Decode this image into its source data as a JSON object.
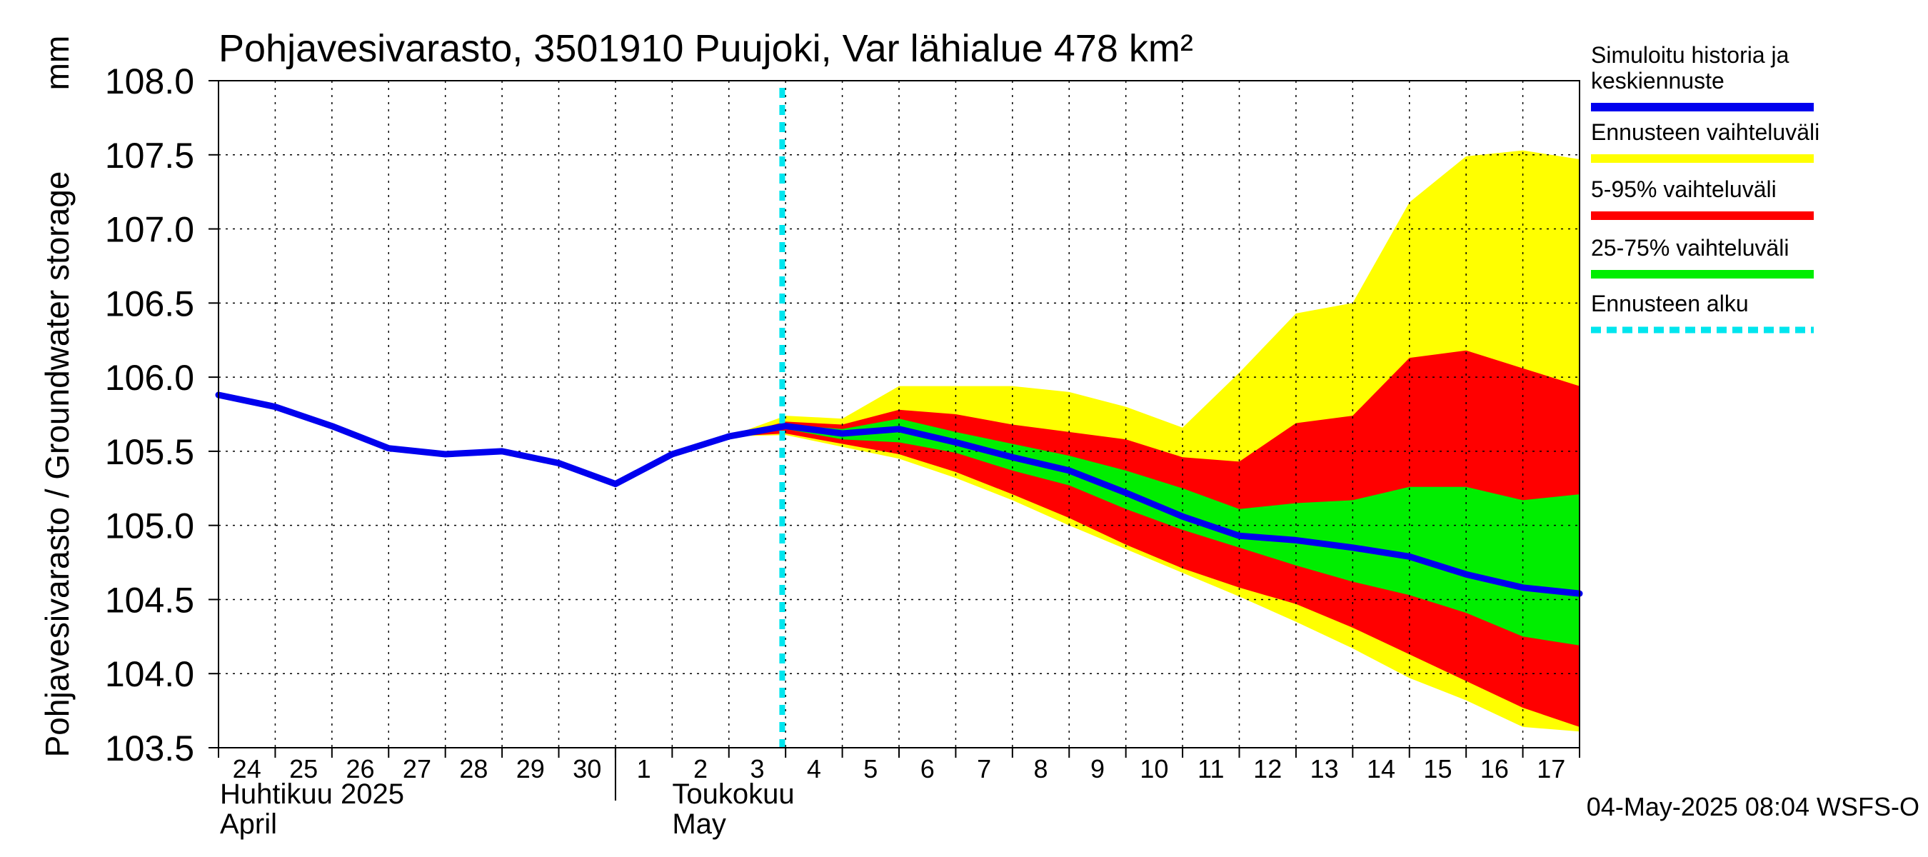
{
  "chart_data": {
    "type": "area",
    "title": "Pohjavesivarasto, 3501910 Puujoki, Var lähialue 478 km²",
    "ylabel": "Pohjavesivarasto / Groundwater storage",
    "yunit": "mm",
    "ylim": [
      103.5,
      108.0
    ],
    "yticks": [
      "103.5",
      "104.0",
      "104.5",
      "105.0",
      "105.5",
      "106.0",
      "106.5",
      "107.0",
      "107.5",
      "108.0"
    ],
    "x_dates": [
      "2025-04-24",
      "2025-04-25",
      "2025-04-26",
      "2025-04-27",
      "2025-04-28",
      "2025-04-29",
      "2025-04-30",
      "2025-05-01",
      "2025-05-02",
      "2025-05-03",
      "2025-05-04",
      "2025-05-05",
      "2025-05-06",
      "2025-05-07",
      "2025-05-08",
      "2025-05-09",
      "2025-05-10",
      "2025-05-11",
      "2025-05-12",
      "2025-05-13",
      "2025-05-14",
      "2025-05-15",
      "2025-05-16",
      "2025-05-17",
      "2025-05-18"
    ],
    "xtick_labels": [
      "24",
      "25",
      "26",
      "27",
      "28",
      "29",
      "30",
      "1",
      "2",
      "3",
      "4",
      "5",
      "6",
      "7",
      "8",
      "9",
      "10",
      "11",
      "12",
      "13",
      "14",
      "15",
      "16",
      "17"
    ],
    "month_labels": [
      {
        "fi": "Huhtikuu  2025",
        "en": "April"
      },
      {
        "fi": "Toukokuu",
        "en": "May"
      }
    ],
    "forecast_start": "2025-05-04",
    "series": [
      {
        "name": "Simuloitu historia ja keskiennuste",
        "color": "#0000ee",
        "x": [
          "2025-04-24",
          "2025-04-25",
          "2025-04-26",
          "2025-04-27",
          "2025-04-28",
          "2025-04-29",
          "2025-04-30",
          "2025-05-01",
          "2025-05-02",
          "2025-05-03",
          "2025-05-04",
          "2025-05-05",
          "2025-05-06",
          "2025-05-07",
          "2025-05-08",
          "2025-05-09",
          "2025-05-10",
          "2025-05-11",
          "2025-05-12",
          "2025-05-13",
          "2025-05-14",
          "2025-05-15",
          "2025-05-16",
          "2025-05-17",
          "2025-05-18"
        ],
        "y": [
          105.88,
          105.8,
          105.67,
          105.52,
          105.48,
          105.5,
          105.42,
          105.28,
          105.48,
          105.6,
          105.67,
          105.62,
          105.65,
          105.56,
          105.46,
          105.37,
          105.22,
          105.06,
          104.93,
          104.9,
          104.85,
          104.79,
          104.67,
          104.58,
          104.54
        ]
      },
      {
        "name": "Ennusteen vaihteluväli",
        "color": "#ffff00",
        "x": [
          "2025-05-03",
          "2025-05-04",
          "2025-05-05",
          "2025-05-06",
          "2025-05-07",
          "2025-05-08",
          "2025-05-09",
          "2025-05-10",
          "2025-05-11",
          "2025-05-12",
          "2025-05-13",
          "2025-05-14",
          "2025-05-15",
          "2025-05-16",
          "2025-05-17",
          "2025-05-18"
        ],
        "upper": [
          105.6,
          105.74,
          105.72,
          105.94,
          105.94,
          105.94,
          105.9,
          105.8,
          105.66,
          106.03,
          106.43,
          106.5,
          107.18,
          107.49,
          107.53,
          107.47
        ],
        "lower": [
          105.6,
          105.61,
          105.53,
          105.45,
          105.32,
          105.17,
          105.0,
          104.84,
          104.68,
          104.52,
          104.35,
          104.17,
          103.97,
          103.82,
          103.64,
          103.61
        ]
      },
      {
        "name": "5-95% vaihteluväli",
        "color": "#ff0000",
        "x": [
          "2025-05-03",
          "2025-05-04",
          "2025-05-05",
          "2025-05-06",
          "2025-05-07",
          "2025-05-08",
          "2025-05-09",
          "2025-05-10",
          "2025-05-11",
          "2025-05-12",
          "2025-05-13",
          "2025-05-14",
          "2025-05-15",
          "2025-05-16",
          "2025-05-17",
          "2025-05-18"
        ],
        "upper": [
          105.6,
          105.7,
          105.68,
          105.78,
          105.75,
          105.68,
          105.63,
          105.58,
          105.46,
          105.43,
          105.69,
          105.74,
          106.13,
          106.18,
          106.06,
          105.94
        ],
        "lower": [
          105.6,
          105.62,
          105.55,
          105.48,
          105.36,
          105.21,
          105.05,
          104.87,
          104.71,
          104.58,
          104.47,
          104.31,
          104.13,
          103.95,
          103.77,
          103.64
        ]
      },
      {
        "name": "25-75% vaihteluväli",
        "color": "#00ee00",
        "x": [
          "2025-05-03",
          "2025-05-04",
          "2025-05-05",
          "2025-05-06",
          "2025-05-07",
          "2025-05-08",
          "2025-05-09",
          "2025-05-10",
          "2025-05-11",
          "2025-05-12",
          "2025-05-13",
          "2025-05-14",
          "2025-05-15",
          "2025-05-16",
          "2025-05-17",
          "2025-05-18"
        ],
        "upper": [
          105.6,
          105.68,
          105.65,
          105.72,
          105.63,
          105.55,
          105.47,
          105.37,
          105.25,
          105.11,
          105.15,
          105.17,
          105.26,
          105.26,
          105.17,
          105.21
        ],
        "lower": [
          105.6,
          105.65,
          105.58,
          105.56,
          105.49,
          105.37,
          105.27,
          105.11,
          104.97,
          104.85,
          104.73,
          104.62,
          104.53,
          104.41,
          104.25,
          104.19
        ]
      }
    ],
    "legend": {
      "placement": "right",
      "items": [
        {
          "label": "Simuloitu historia ja keskiennuste",
          "label_lines": [
            "Simuloitu historia ja",
            "keskiennuste"
          ],
          "color": "#0000ee",
          "style": "solid"
        },
        {
          "label": "Ennusteen vaihteluväli",
          "label_lines": [
            "Ennusteen vaihteluväli"
          ],
          "color": "#ffff00",
          "style": "solid"
        },
        {
          "label": "5-95% vaihteluväli",
          "label_lines": [
            "5-95% vaihteluväli"
          ],
          "color": "#ff0000",
          "style": "solid"
        },
        {
          "label": "25-75% vaihteluväli",
          "label_lines": [
            "25-75% vaihteluväli"
          ],
          "color": "#00ee00",
          "style": "solid"
        },
        {
          "label": "Ennusteen alku",
          "label_lines": [
            "Ennusteen alku"
          ],
          "color": "#00e5ee",
          "style": "dashed"
        }
      ]
    },
    "grid": true,
    "footer": "04-May-2025 08:04 WSFS-O"
  }
}
